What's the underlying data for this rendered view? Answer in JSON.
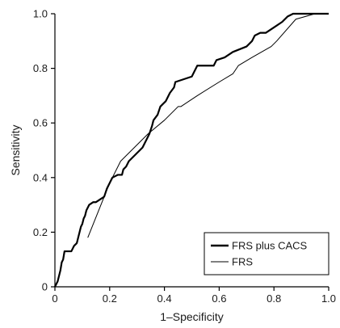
{
  "chart_data": {
    "type": "line",
    "title": "",
    "xlabel": "1–Specificity",
    "ylabel": "Sensitivity",
    "xlim": [
      0,
      1
    ],
    "ylim": [
      0,
      1
    ],
    "x_ticks": [
      "0",
      "0.2",
      "0.4",
      "0.6",
      "0.8",
      "1.0"
    ],
    "y_ticks": [
      "0",
      "0.2",
      "0.4",
      "0.6",
      "0.8",
      "1.0"
    ],
    "grid": false,
    "legend_position": "bottom-right",
    "series": [
      {
        "name": "FRS plus CACS",
        "color": "#000000",
        "style": "thick-step",
        "points": [
          [
            0,
            0
          ],
          [
            0.005,
            0.01
          ],
          [
            0.01,
            0.02
          ],
          [
            0.015,
            0.04
          ],
          [
            0.02,
            0.06
          ],
          [
            0.025,
            0.09
          ],
          [
            0.03,
            0.1
          ],
          [
            0.035,
            0.13
          ],
          [
            0.06,
            0.13
          ],
          [
            0.07,
            0.15
          ],
          [
            0.08,
            0.16
          ],
          [
            0.085,
            0.18
          ],
          [
            0.09,
            0.2
          ],
          [
            0.095,
            0.22
          ],
          [
            0.1,
            0.23
          ],
          [
            0.105,
            0.25
          ],
          [
            0.11,
            0.26
          ],
          [
            0.115,
            0.28
          ],
          [
            0.125,
            0.3
          ],
          [
            0.14,
            0.31
          ],
          [
            0.15,
            0.31
          ],
          [
            0.165,
            0.32
          ],
          [
            0.18,
            0.33
          ],
          [
            0.19,
            0.36
          ],
          [
            0.21,
            0.4
          ],
          [
            0.23,
            0.41
          ],
          [
            0.245,
            0.41
          ],
          [
            0.25,
            0.43
          ],
          [
            0.26,
            0.44
          ],
          [
            0.27,
            0.46
          ],
          [
            0.3,
            0.49
          ],
          [
            0.32,
            0.51
          ],
          [
            0.33,
            0.53
          ],
          [
            0.345,
            0.56
          ],
          [
            0.355,
            0.59
          ],
          [
            0.36,
            0.61
          ],
          [
            0.375,
            0.63
          ],
          [
            0.385,
            0.66
          ],
          [
            0.405,
            0.68
          ],
          [
            0.41,
            0.69
          ],
          [
            0.42,
            0.71
          ],
          [
            0.435,
            0.73
          ],
          [
            0.44,
            0.75
          ],
          [
            0.47,
            0.76
          ],
          [
            0.5,
            0.77
          ],
          [
            0.52,
            0.81
          ],
          [
            0.58,
            0.81
          ],
          [
            0.59,
            0.83
          ],
          [
            0.62,
            0.84
          ],
          [
            0.65,
            0.86
          ],
          [
            0.7,
            0.88
          ],
          [
            0.72,
            0.9
          ],
          [
            0.73,
            0.92
          ],
          [
            0.75,
            0.93
          ],
          [
            0.77,
            0.93
          ],
          [
            0.8,
            0.95
          ],
          [
            0.83,
            0.97
          ],
          [
            0.85,
            0.99
          ],
          [
            0.87,
            1.0
          ],
          [
            1.0,
            1.0
          ]
        ]
      },
      {
        "name": "FRS",
        "color": "#000000",
        "style": "thin",
        "points": [
          [
            0.12,
            0.18
          ],
          [
            0.18,
            0.33
          ],
          [
            0.2,
            0.38
          ],
          [
            0.24,
            0.46
          ],
          [
            0.26,
            0.48
          ],
          [
            0.3,
            0.52
          ],
          [
            0.34,
            0.56
          ],
          [
            0.4,
            0.61
          ],
          [
            0.45,
            0.66
          ],
          [
            0.46,
            0.66
          ],
          [
            0.52,
            0.7
          ],
          [
            0.6,
            0.75
          ],
          [
            0.65,
            0.78
          ],
          [
            0.67,
            0.81
          ],
          [
            0.72,
            0.84
          ],
          [
            0.79,
            0.88
          ],
          [
            0.81,
            0.9
          ],
          [
            0.88,
            0.98
          ],
          [
            0.95,
            1.0
          ],
          [
            1.0,
            1.0
          ]
        ]
      }
    ]
  }
}
